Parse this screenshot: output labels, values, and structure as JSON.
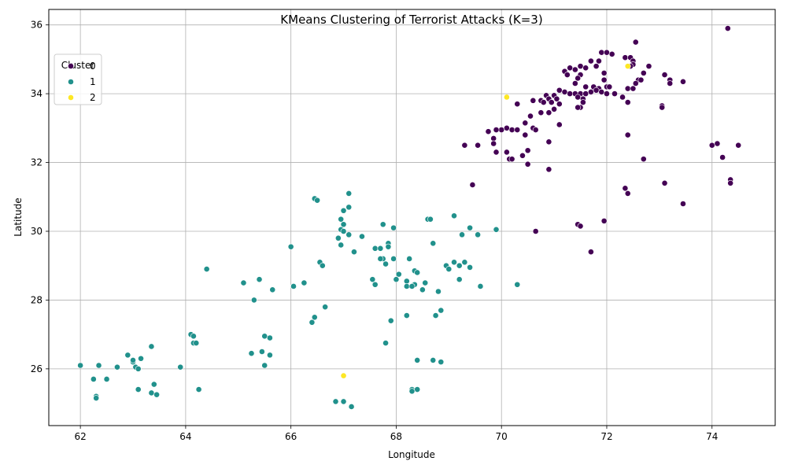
{
  "chart_data": {
    "type": "scatter",
    "title": "KMeans Clustering of Terrorist Attacks (K=3)",
    "xlabel": "Longitude",
    "ylabel": "Latitude",
    "xlim": [
      61.4,
      75.2
    ],
    "ylim": [
      24.35,
      36.45
    ],
    "xticks": [
      62,
      64,
      66,
      68,
      70,
      72,
      74
    ],
    "yticks": [
      26,
      28,
      30,
      32,
      34,
      36
    ],
    "grid": true,
    "legend": {
      "title": "Cluster",
      "placement": "top-left"
    },
    "series": [
      {
        "name": "0",
        "color": "#440154",
        "points": [
          [
            74.3,
            35.9
          ],
          [
            72.55,
            35.5
          ],
          [
            71.9,
            35.2
          ],
          [
            72.0,
            35.2
          ],
          [
            72.1,
            35.15
          ],
          [
            72.35,
            35.05
          ],
          [
            72.45,
            35.05
          ],
          [
            72.5,
            34.95
          ],
          [
            71.7,
            34.95
          ],
          [
            71.85,
            34.95
          ],
          [
            72.5,
            34.85
          ],
          [
            72.45,
            34.8
          ],
          [
            72.8,
            34.8
          ],
          [
            71.3,
            34.75
          ],
          [
            71.5,
            34.8
          ],
          [
            71.6,
            34.75
          ],
          [
            71.8,
            34.8
          ],
          [
            71.4,
            34.7
          ],
          [
            71.2,
            34.65
          ],
          [
            71.95,
            34.6
          ],
          [
            72.7,
            34.6
          ],
          [
            73.1,
            34.55
          ],
          [
            71.25,
            34.55
          ],
          [
            71.5,
            34.55
          ],
          [
            71.45,
            34.45
          ],
          [
            71.95,
            34.4
          ],
          [
            72.6,
            34.4
          ],
          [
            72.65,
            34.4
          ],
          [
            72.55,
            34.3
          ],
          [
            73.2,
            34.4
          ],
          [
            73.2,
            34.3
          ],
          [
            73.45,
            34.35
          ],
          [
            71.4,
            34.3
          ],
          [
            71.6,
            34.2
          ],
          [
            71.75,
            34.2
          ],
          [
            71.85,
            34.15
          ],
          [
            72.0,
            34.2
          ],
          [
            72.05,
            34.2
          ],
          [
            72.4,
            34.15
          ],
          [
            72.5,
            34.15
          ],
          [
            71.1,
            34.1
          ],
          [
            71.2,
            34.05
          ],
          [
            71.3,
            34.0
          ],
          [
            71.4,
            34.0
          ],
          [
            71.5,
            34.0
          ],
          [
            71.6,
            34.0
          ],
          [
            71.7,
            34.05
          ],
          [
            71.8,
            34.1
          ],
          [
            71.9,
            34.05
          ],
          [
            72.0,
            34.0
          ],
          [
            72.15,
            34.0
          ],
          [
            71.0,
            33.95
          ],
          [
            70.85,
            33.95
          ],
          [
            70.9,
            33.85
          ],
          [
            71.05,
            33.85
          ],
          [
            70.6,
            33.8
          ],
          [
            70.75,
            33.8
          ],
          [
            70.8,
            33.75
          ],
          [
            70.95,
            33.75
          ],
          [
            71.1,
            33.7
          ],
          [
            71.45,
            33.9
          ],
          [
            71.55,
            33.85
          ],
          [
            71.55,
            33.75
          ],
          [
            71.5,
            33.6
          ],
          [
            71.45,
            33.6
          ],
          [
            72.3,
            33.9
          ],
          [
            72.4,
            33.75
          ],
          [
            73.05,
            33.65
          ],
          [
            73.05,
            33.6
          ],
          [
            70.3,
            33.7
          ],
          [
            71.0,
            33.55
          ],
          [
            70.55,
            33.35
          ],
          [
            70.9,
            33.45
          ],
          [
            70.75,
            33.45
          ],
          [
            70.45,
            33.15
          ],
          [
            70.6,
            33.0
          ],
          [
            70.65,
            32.95
          ],
          [
            70.45,
            32.8
          ],
          [
            70.1,
            33.0
          ],
          [
            70.0,
            32.95
          ],
          [
            70.2,
            32.95
          ],
          [
            70.3,
            32.95
          ],
          [
            69.9,
            32.95
          ],
          [
            69.75,
            32.9
          ],
          [
            69.85,
            32.7
          ],
          [
            69.55,
            32.5
          ],
          [
            69.85,
            32.55
          ],
          [
            69.3,
            32.5
          ],
          [
            70.1,
            32.3
          ],
          [
            69.9,
            32.3
          ],
          [
            70.4,
            32.2
          ],
          [
            70.15,
            32.1
          ],
          [
            70.2,
            32.1
          ],
          [
            70.5,
            32.35
          ],
          [
            70.5,
            31.95
          ],
          [
            70.9,
            32.6
          ],
          [
            71.1,
            33.1
          ],
          [
            72.4,
            32.8
          ],
          [
            72.7,
            32.1
          ],
          [
            70.9,
            31.8
          ],
          [
            69.45,
            31.35
          ],
          [
            73.1,
            31.4
          ],
          [
            72.35,
            31.25
          ],
          [
            72.4,
            31.1
          ],
          [
            74.0,
            32.5
          ],
          [
            74.1,
            32.55
          ],
          [
            74.5,
            32.5
          ],
          [
            74.2,
            32.15
          ],
          [
            74.35,
            31.5
          ],
          [
            74.35,
            31.4
          ],
          [
            73.45,
            30.8
          ],
          [
            71.95,
            30.3
          ],
          [
            71.45,
            30.2
          ],
          [
            71.5,
            30.15
          ],
          [
            70.65,
            30.0
          ],
          [
            71.7,
            29.4
          ]
        ]
      },
      {
        "name": "1",
        "color": "#21918c",
        "points": [
          [
            67.1,
            31.1
          ],
          [
            66.45,
            30.95
          ],
          [
            66.5,
            30.9
          ],
          [
            67.1,
            30.7
          ],
          [
            67.0,
            30.6
          ],
          [
            66.95,
            30.35
          ],
          [
            67.0,
            30.2
          ],
          [
            66.95,
            30.05
          ],
          [
            67.0,
            30.0
          ],
          [
            67.75,
            30.2
          ],
          [
            67.95,
            30.1
          ],
          [
            67.1,
            29.9
          ],
          [
            66.9,
            29.8
          ],
          [
            66.95,
            29.6
          ],
          [
            67.35,
            29.85
          ],
          [
            67.85,
            29.65
          ],
          [
            67.6,
            29.5
          ],
          [
            67.7,
            29.5
          ],
          [
            67.85,
            29.55
          ],
          [
            67.2,
            29.4
          ],
          [
            67.75,
            29.2
          ],
          [
            67.7,
            29.2
          ],
          [
            67.95,
            29.2
          ],
          [
            67.8,
            29.05
          ],
          [
            66.55,
            29.1
          ],
          [
            66.6,
            29.0
          ],
          [
            66.0,
            29.55
          ],
          [
            64.4,
            28.9
          ],
          [
            68.6,
            30.35
          ],
          [
            68.65,
            30.35
          ],
          [
            69.1,
            30.45
          ],
          [
            69.4,
            30.1
          ],
          [
            69.9,
            30.05
          ],
          [
            69.25,
            29.9
          ],
          [
            69.55,
            29.9
          ],
          [
            68.7,
            29.65
          ],
          [
            68.25,
            29.2
          ],
          [
            69.3,
            29.1
          ],
          [
            69.1,
            29.1
          ],
          [
            69.2,
            29.0
          ],
          [
            68.95,
            29.0
          ],
          [
            69.0,
            28.9
          ],
          [
            69.4,
            28.95
          ],
          [
            68.35,
            28.85
          ],
          [
            68.4,
            28.8
          ],
          [
            68.05,
            28.75
          ],
          [
            68.0,
            28.6
          ],
          [
            68.2,
            28.55
          ],
          [
            68.2,
            28.4
          ],
          [
            68.35,
            28.45
          ],
          [
            68.55,
            28.5
          ],
          [
            68.3,
            28.4
          ],
          [
            68.5,
            28.3
          ],
          [
            67.55,
            28.6
          ],
          [
            67.6,
            28.45
          ],
          [
            68.8,
            28.25
          ],
          [
            69.2,
            28.6
          ],
          [
            69.6,
            28.4
          ],
          [
            70.3,
            28.45
          ],
          [
            66.25,
            28.5
          ],
          [
            66.05,
            28.4
          ],
          [
            65.4,
            28.6
          ],
          [
            65.1,
            28.5
          ],
          [
            65.65,
            28.3
          ],
          [
            65.3,
            28.0
          ],
          [
            66.65,
            27.8
          ],
          [
            66.45,
            27.5
          ],
          [
            66.4,
            27.35
          ],
          [
            67.9,
            27.4
          ],
          [
            68.2,
            27.55
          ],
          [
            68.75,
            27.55
          ],
          [
            68.85,
            27.7
          ],
          [
            67.8,
            26.75
          ],
          [
            64.1,
            27.0
          ],
          [
            64.15,
            26.95
          ],
          [
            64.15,
            26.75
          ],
          [
            64.2,
            26.75
          ],
          [
            65.5,
            26.95
          ],
          [
            65.6,
            26.9
          ],
          [
            65.25,
            26.45
          ],
          [
            65.45,
            26.5
          ],
          [
            65.6,
            26.4
          ],
          [
            68.4,
            26.25
          ],
          [
            68.7,
            26.25
          ],
          [
            68.85,
            26.2
          ],
          [
            65.5,
            26.1
          ],
          [
            62.0,
            26.1
          ],
          [
            62.35,
            26.1
          ],
          [
            62.7,
            26.05
          ],
          [
            63.0,
            26.2
          ],
          [
            63.0,
            26.25
          ],
          [
            63.05,
            26.05
          ],
          [
            63.1,
            26.0
          ],
          [
            63.15,
            26.3
          ],
          [
            63.35,
            26.65
          ],
          [
            62.9,
            26.4
          ],
          [
            63.9,
            26.05
          ],
          [
            62.25,
            25.7
          ],
          [
            62.5,
            25.7
          ],
          [
            63.4,
            25.55
          ],
          [
            63.1,
            25.4
          ],
          [
            63.35,
            25.3
          ],
          [
            63.45,
            25.25
          ],
          [
            64.25,
            25.4
          ],
          [
            62.3,
            25.2
          ],
          [
            62.3,
            25.15
          ],
          [
            68.3,
            25.4
          ],
          [
            68.4,
            25.4
          ],
          [
            68.3,
            25.35
          ],
          [
            66.85,
            25.05
          ],
          [
            67.0,
            25.05
          ],
          [
            67.15,
            24.9
          ]
        ]
      },
      {
        "name": "2",
        "color": "#fde725",
        "points": [
          [
            70.1,
            33.9
          ],
          [
            72.4,
            34.8
          ],
          [
            67.0,
            25.8
          ]
        ]
      }
    ]
  }
}
